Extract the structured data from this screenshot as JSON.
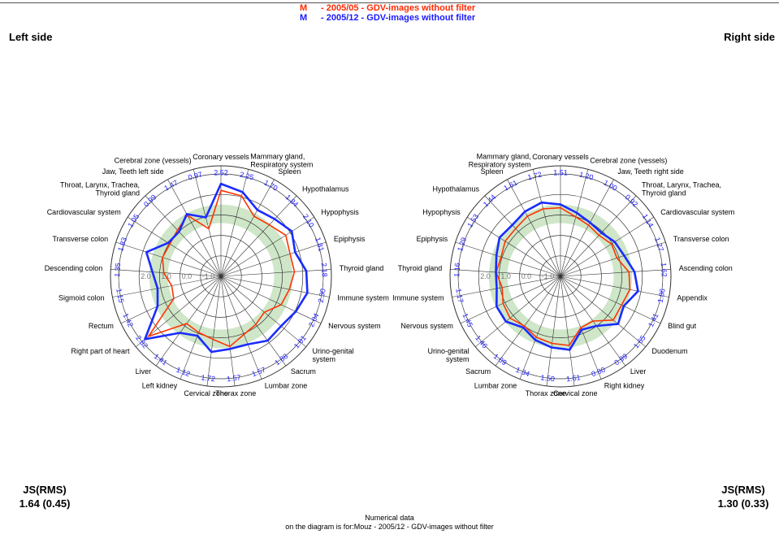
{
  "header": {
    "legend": [
      {
        "marker": "M",
        "text": "- 2005/05 - GDV-images without filter",
        "color": "#ff2a00"
      },
      {
        "marker": "M",
        "text": "- 2005/12 - GDV-images without filter",
        "color": "#1a1aff"
      }
    ]
  },
  "colors": {
    "series1": "#ff3300",
    "series2": "#1a2cff",
    "band": "#cfe6c9",
    "grid": "#333333"
  },
  "chart_data": [
    {
      "type": "radar",
      "title": "Left side",
      "rlim": [
        -2.0,
        3.0
      ],
      "ring_labels": [
        "2.0",
        "1.0",
        "0.0",
        "-1.0"
      ],
      "band": [
        0.6,
        1.5
      ],
      "categories": [
        "Coronary vessels",
        "Mammary gland, Respiratory system",
        "Spleen",
        "Hypothalamus",
        "Hypophysis",
        "Epiphysis",
        "Thyroid gland",
        "Immune system",
        "Nervous system",
        "Urino-genital system",
        "Sacrum",
        "Lumbar zone",
        "Thorax zone",
        "Cervical zone",
        "Left kidney",
        "Liver",
        "Right part of heart",
        "Rectum",
        "Sigmoid colon",
        "Descending colon",
        "Transverse colon",
        "Cardiovascular system",
        "Throat, Larynx, Trachea, Thyroid gland",
        "Jaw, Teeth left side",
        "Cerebral zone (vessels)"
      ],
      "value_labels": [
        "2.52",
        "2.25",
        "1.70",
        "1.84",
        "2.10",
        "1.81",
        "2.18",
        "2.30",
        "2.04",
        "1.81",
        "1.88",
        "1.57",
        "1.57",
        "1.72",
        "1.12",
        "1.41",
        "2.82",
        "1.42",
        "1.15",
        "1.35",
        "1.83",
        "1.05",
        "0.99",
        "1.47",
        "0.97"
      ],
      "series": [
        {
          "name": "2005/05",
          "values": [
            2.2,
            2.05,
            1.35,
            1.45,
            1.75,
            1.55,
            1.6,
            1.4,
            1.25,
            0.75,
            0.9,
            1.05,
            1.45,
            1.1,
            0.95,
            0.85,
            2.6,
            0.55,
            0.45,
            0.8,
            1.0,
            0.95,
            1.1,
            1.4,
            0.4
          ]
        },
        {
          "name": "2005/12",
          "values": [
            2.52,
            2.25,
            1.7,
            1.84,
            2.1,
            1.81,
            2.18,
            2.3,
            2.04,
            1.81,
            1.88,
            1.57,
            1.57,
            1.72,
            1.12,
            1.41,
            2.82,
            1.42,
            1.15,
            1.35,
            1.83,
            1.05,
            0.99,
            1.47,
            0.97
          ]
        }
      ],
      "js_label": "JS(RMS)",
      "js_value": "1.64 (0.45)"
    },
    {
      "type": "radar",
      "title": "Right side",
      "rlim": [
        -2.0,
        3.0
      ],
      "ring_labels": [
        "2.0",
        "1.0",
        "0.0",
        "-1.0"
      ],
      "band": [
        0.6,
        1.5
      ],
      "categories": [
        "Coronary vessels",
        "Cerebral zone (vessels)",
        "Jaw, Teeth right side",
        "Throat, Larynx, Trachea, Thyroid gland",
        "Cardiovascular system",
        "Transverse colon",
        "Ascending colon",
        "Appendix",
        "Blind gut",
        "Duodenum",
        "Liver",
        "Right kidney",
        "Cervical zone",
        "Thorax zone",
        "Lumbar zone",
        "Sacrum",
        "Urino-genital system",
        "Nervous system",
        "Immune system",
        "Thyroid gland",
        "Epiphysis",
        "Hypophysis",
        "Hypothalamus",
        "Spleen",
        "Mammary gland, Respiratory system"
      ],
      "value_labels": [
        "1.51",
        "1.20",
        "1.00",
        "0.92",
        "1.14",
        "1.27",
        "1.62",
        "1.86",
        "1.41",
        "1.65",
        "0.99",
        "0.80",
        "1.61",
        "1.50",
        "1.34",
        "1.09",
        "1.46",
        "1.45",
        "1.17",
        "1.16",
        "1.29",
        "1.53",
        "1.44",
        "1.61",
        "1.72"
      ],
      "series": [
        {
          "name": "2005/05",
          "values": [
            1.35,
            1.0,
            0.85,
            0.75,
            0.95,
            0.9,
            1.35,
            1.45,
            1.3,
            1.35,
            0.7,
            0.7,
            1.4,
            1.3,
            1.2,
            1.0,
            1.2,
            1.1,
            0.9,
            1.15,
            1.05,
            1.2,
            1.2,
            1.35,
            1.4
          ]
        },
        {
          "name": "2005/12",
          "values": [
            1.51,
            1.2,
            1.0,
            0.92,
            1.14,
            1.27,
            1.62,
            1.86,
            1.41,
            1.65,
            0.99,
            0.8,
            1.61,
            1.5,
            1.34,
            1.09,
            1.46,
            1.45,
            1.17,
            1.16,
            1.29,
            1.53,
            1.44,
            1.61,
            1.72
          ]
        }
      ],
      "js_label": "JS(RMS)",
      "js_value": "1.30 (0.33)"
    }
  ],
  "footer": {
    "line1": "Numerical data",
    "line2": "on the diagram is for:Mouz - 2005/12 - GDV-images without filter"
  }
}
